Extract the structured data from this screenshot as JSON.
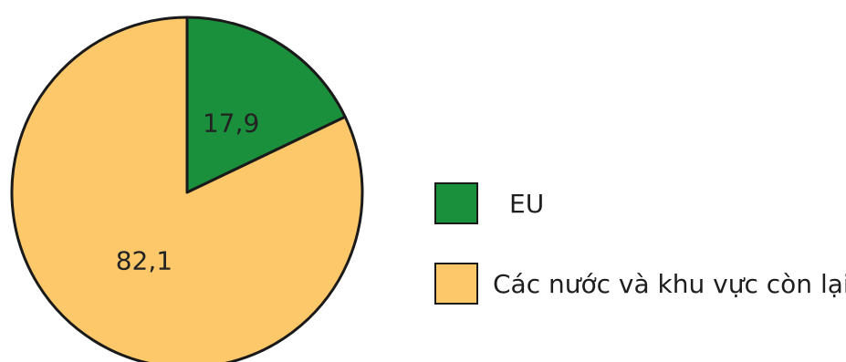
{
  "chart_data": {
    "type": "pie",
    "title": "",
    "series": [
      {
        "label": "EU",
        "value": 17.9,
        "display": "17,9",
        "color": "#1a8f3c"
      },
      {
        "label": "Các nước và khu vực còn lại",
        "value": 82.1,
        "display": "82,1",
        "color": "#fcc86a"
      }
    ],
    "start_angle_deg": 0,
    "direction": "clockwise",
    "outline_color": "#1a1a1a",
    "legend_position": "right"
  }
}
